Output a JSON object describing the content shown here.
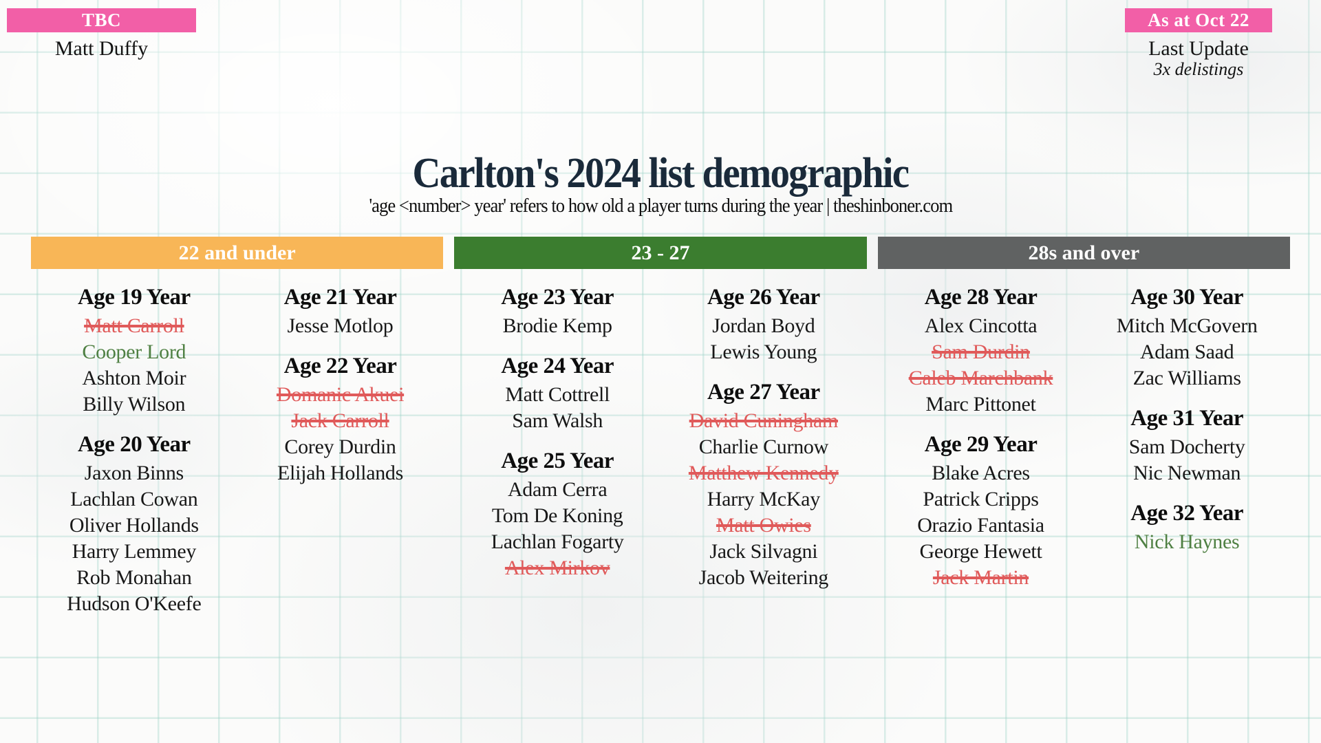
{
  "colors": {
    "badge_pink": "#F25FA7",
    "section_orange": "#F8B657",
    "section_green": "#3B7D2F",
    "section_gray": "#606262",
    "title_navy": "#1A2A3A",
    "delisted_red": "#E05A5A",
    "added_green": "#4F8043"
  },
  "badges": {
    "left": {
      "label": "TBC",
      "name": "Matt Duffy"
    },
    "right": {
      "label": "As at Oct 22",
      "line1": "Last Update",
      "line2": "3x delistings"
    }
  },
  "title": "Carlton's 2024 list demographic",
  "subtitle": "'age <number> year' refers to how old a player turns during the year | theshinboner.com",
  "sections": [
    {
      "label": "22 and under",
      "color_key": "section_orange",
      "columns": [
        {
          "groups": [
            {
              "heading": "Age 19 Year",
              "players": [
                {
                  "name": "Matt Carroll",
                  "status": "delisted"
                },
                {
                  "name": "Cooper Lord",
                  "status": "added"
                },
                {
                  "name": "Ashton Moir",
                  "status": "normal"
                },
                {
                  "name": "Billy Wilson",
                  "status": "normal"
                }
              ]
            },
            {
              "heading": "Age 20 Year",
              "players": [
                {
                  "name": "Jaxon Binns",
                  "status": "normal"
                },
                {
                  "name": "Lachlan Cowan",
                  "status": "normal"
                },
                {
                  "name": "Oliver Hollands",
                  "status": "normal"
                },
                {
                  "name": "Harry Lemmey",
                  "status": "normal"
                },
                {
                  "name": "Rob Monahan",
                  "status": "normal"
                },
                {
                  "name": "Hudson O'Keefe",
                  "status": "normal"
                }
              ]
            }
          ]
        },
        {
          "groups": [
            {
              "heading": "Age 21 Year",
              "players": [
                {
                  "name": "Jesse Motlop",
                  "status": "normal"
                }
              ]
            },
            {
              "heading": "Age 22 Year",
              "players": [
                {
                  "name": "Domanic Akuei",
                  "status": "delisted"
                },
                {
                  "name": "Jack Carroll",
                  "status": "delisted"
                },
                {
                  "name": "Corey Durdin",
                  "status": "normal"
                },
                {
                  "name": "Elijah Hollands",
                  "status": "normal"
                }
              ]
            }
          ]
        }
      ]
    },
    {
      "label": "23 - 27",
      "color_key": "section_green",
      "columns": [
        {
          "groups": [
            {
              "heading": "Age 23 Year",
              "players": [
                {
                  "name": "Brodie Kemp",
                  "status": "normal"
                }
              ]
            },
            {
              "heading": "Age 24 Year",
              "players": [
                {
                  "name": "Matt Cottrell",
                  "status": "normal"
                },
                {
                  "name": "Sam Walsh",
                  "status": "normal"
                }
              ]
            },
            {
              "heading": "Age 25 Year",
              "players": [
                {
                  "name": "Adam Cerra",
                  "status": "normal"
                },
                {
                  "name": "Tom De Koning",
                  "status": "normal"
                },
                {
                  "name": "Lachlan Fogarty",
                  "status": "normal"
                },
                {
                  "name": "Alex Mirkov",
                  "status": "delisted"
                }
              ]
            }
          ]
        },
        {
          "groups": [
            {
              "heading": "Age 26 Year",
              "players": [
                {
                  "name": "Jordan Boyd",
                  "status": "normal"
                },
                {
                  "name": "Lewis Young",
                  "status": "normal"
                }
              ]
            },
            {
              "heading": "Age 27 Year",
              "players": [
                {
                  "name": "David Cuningham",
                  "status": "delisted"
                },
                {
                  "name": "Charlie Curnow",
                  "status": "normal"
                },
                {
                  "name": "Matthew Kennedy",
                  "status": "delisted"
                },
                {
                  "name": "Harry McKay",
                  "status": "normal"
                },
                {
                  "name": "Matt Owies",
                  "status": "delisted"
                },
                {
                  "name": "Jack Silvagni",
                  "status": "normal"
                },
                {
                  "name": "Jacob Weitering",
                  "status": "normal"
                }
              ]
            }
          ]
        }
      ]
    },
    {
      "label": "28s and over",
      "color_key": "section_gray",
      "columns": [
        {
          "groups": [
            {
              "heading": "Age 28 Year",
              "players": [
                {
                  "name": "Alex Cincotta",
                  "status": "normal"
                },
                {
                  "name": "Sam Durdin",
                  "status": "delisted"
                },
                {
                  "name": "Caleb Marchbank",
                  "status": "delisted"
                },
                {
                  "name": "Marc Pittonet",
                  "status": "normal"
                }
              ]
            },
            {
              "heading": "Age 29 Year",
              "players": [
                {
                  "name": "Blake Acres",
                  "status": "normal"
                },
                {
                  "name": "Patrick Cripps",
                  "status": "normal"
                },
                {
                  "name": "Orazio Fantasia",
                  "status": "normal"
                },
                {
                  "name": "George Hewett",
                  "status": "normal"
                },
                {
                  "name": "Jack Martin",
                  "status": "delisted"
                }
              ]
            }
          ]
        },
        {
          "groups": [
            {
              "heading": "Age 30 Year",
              "players": [
                {
                  "name": "Mitch McGovern",
                  "status": "normal"
                },
                {
                  "name": "Adam Saad",
                  "status": "normal"
                },
                {
                  "name": "Zac Williams",
                  "status": "normal"
                }
              ]
            },
            {
              "heading": "Age 31 Year",
              "players": [
                {
                  "name": "Sam Docherty",
                  "status": "normal"
                },
                {
                  "name": "Nic Newman",
                  "status": "normal"
                }
              ]
            },
            {
              "heading": "Age 32 Year",
              "players": [
                {
                  "name": "Nick Haynes",
                  "status": "added"
                }
              ]
            }
          ]
        }
      ]
    }
  ]
}
